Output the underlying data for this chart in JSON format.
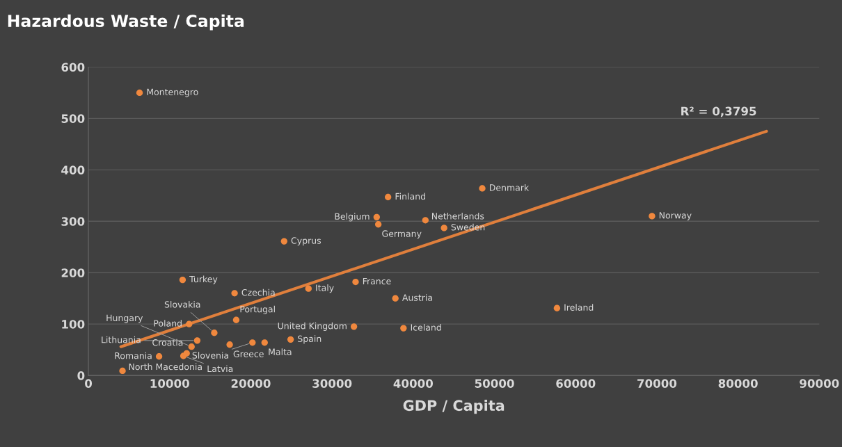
{
  "chart_data": {
    "type": "scatter",
    "title": "Hazardous Waste / Capita",
    "xlabel": "GDP / Capita",
    "xlim": [
      0,
      90000
    ],
    "ylim": [
      0,
      600
    ],
    "xticks": [
      0,
      10000,
      20000,
      30000,
      40000,
      50000,
      60000,
      70000,
      80000,
      90000
    ],
    "yticks": [
      0,
      100,
      200,
      300,
      400,
      500,
      600
    ],
    "grid": "y",
    "legend": false,
    "marker": "circle",
    "annotations": [
      "R² = 0,3795"
    ],
    "series": [
      {
        "name": "Montenegro",
        "color": "#f0883e",
        "x": [
          6300
        ],
        "values": [
          550
        ]
      },
      {
        "name": "Denmark",
        "color": "#f0883e",
        "x": [
          48500
        ],
        "values": [
          364
        ]
      },
      {
        "name": "Finland",
        "color": "#f0883e",
        "x": [
          36900
        ],
        "values": [
          347
        ]
      },
      {
        "name": "Belgium",
        "color": "#f0883e",
        "x": [
          35500
        ],
        "values": [
          308
        ]
      },
      {
        "name": "Germany",
        "color": "#f0883e",
        "x": [
          35700
        ],
        "values": [
          294
        ]
      },
      {
        "name": "Netherlands",
        "color": "#f0883e",
        "x": [
          41500
        ],
        "values": [
          302
        ]
      },
      {
        "name": "Sweden",
        "color": "#f0883e",
        "x": [
          43800
        ],
        "values": [
          287
        ]
      },
      {
        "name": "Norway",
        "color": "#f0883e",
        "x": [
          69400
        ],
        "values": [
          310
        ]
      },
      {
        "name": "Cyprus",
        "color": "#f0883e",
        "x": [
          24100
        ],
        "values": [
          261
        ]
      },
      {
        "name": "Turkey",
        "color": "#f0883e",
        "x": [
          11600
        ],
        "values": [
          186
        ]
      },
      {
        "name": "Czechia",
        "color": "#f0883e",
        "x": [
          18000
        ],
        "values": [
          160
        ]
      },
      {
        "name": "Italy",
        "color": "#f0883e",
        "x": [
          27100
        ],
        "values": [
          169
        ]
      },
      {
        "name": "France",
        "color": "#f0883e",
        "x": [
          32900
        ],
        "values": [
          182
        ]
      },
      {
        "name": "Austria",
        "color": "#f0883e",
        "x": [
          37800
        ],
        "values": [
          150
        ]
      },
      {
        "name": "Ireland",
        "color": "#f0883e",
        "x": [
          57700
        ],
        "values": [
          131
        ]
      },
      {
        "name": "Poland",
        "color": "#f0883e",
        "x": [
          12400
        ],
        "values": [
          100
        ]
      },
      {
        "name": "Portugal",
        "color": "#f0883e",
        "x": [
          18200
        ],
        "values": [
          108
        ]
      },
      {
        "name": "United Kingdom",
        "color": "#f0883e",
        "x": [
          32700
        ],
        "values": [
          95
        ]
      },
      {
        "name": "Iceland",
        "color": "#f0883e",
        "x": [
          38800
        ],
        "values": [
          92
        ]
      },
      {
        "name": "Slovakia",
        "color": "#f0883e",
        "x": [
          15500
        ],
        "values": [
          83
        ]
      },
      {
        "name": "Lithuania",
        "color": "#f0883e",
        "x": [
          13400
        ],
        "values": [
          68
        ]
      },
      {
        "name": "Hungary",
        "color": "#f0883e",
        "x": [
          12700
        ],
        "values": [
          56
        ]
      },
      {
        "name": "Greece",
        "color": "#f0883e",
        "x": [
          17400
        ],
        "values": [
          60
        ]
      },
      {
        "name": "Slovenia",
        "color": "#f0883e",
        "x": [
          20200
        ],
        "values": [
          64
        ]
      },
      {
        "name": "Malta",
        "color": "#f0883e",
        "x": [
          21700
        ],
        "values": [
          64
        ]
      },
      {
        "name": "Spain",
        "color": "#f0883e",
        "x": [
          24900
        ],
        "values": [
          70
        ]
      },
      {
        "name": "Latvia",
        "color": "#f0883e",
        "x": [
          11700
        ],
        "values": [
          38
        ]
      },
      {
        "name": "Croatia",
        "color": "#f0883e",
        "x": [
          12100
        ],
        "values": [
          43
        ]
      },
      {
        "name": "Romania",
        "color": "#f0883e",
        "x": [
          8700
        ],
        "values": [
          37
        ]
      },
      {
        "name": "North Macedonia",
        "color": "#f0883e",
        "x": [
          4200
        ],
        "values": [
          9
        ]
      },
      {
        "type": "line",
        "color": "#e07f3c",
        "x": [
          4000,
          83500
        ],
        "values": [
          56,
          475
        ],
        "line_style": "solid",
        "marker": "none"
      }
    ]
  }
}
